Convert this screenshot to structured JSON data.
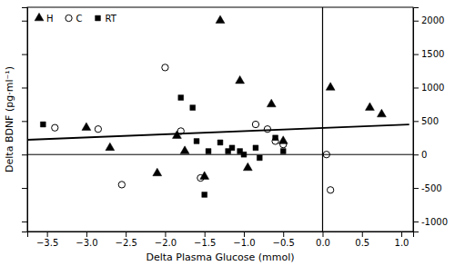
{
  "chart_data": {
    "type": "scatter",
    "xlabel": "Delta Plasma Glucose (mmol)",
    "ylabel": "Delta BDNF (pg·ml⁻¹)",
    "xlim": [
      -3.75,
      1.15
    ],
    "ylim": [
      -1150,
      2200
    ],
    "xticks": [
      {
        "value": -3.5,
        "label": "−3.5"
      },
      {
        "value": -3.0,
        "label": "−3.0"
      },
      {
        "value": -2.5,
        "label": "−2.5"
      },
      {
        "value": -2.0,
        "label": "−2.0"
      },
      {
        "value": -1.5,
        "label": "−1.5"
      },
      {
        "value": -1.0,
        "label": "−1.0"
      },
      {
        "value": -0.5,
        "label": "−0.5"
      },
      {
        "value": 0.0,
        "label": "0.0"
      },
      {
        "value": 0.5,
        "label": "0.5"
      },
      {
        "value": 1.0,
        "label": "1.0"
      }
    ],
    "yticks": [
      -1000,
      -500,
      0,
      500,
      1000,
      1500,
      2000
    ],
    "legend": "upper left",
    "grid": false,
    "series": [
      {
        "name": "H",
        "type": "scatter",
        "marker": "triangle",
        "color": "#000000",
        "x": [
          -3.0,
          -2.7,
          -2.1,
          -1.85,
          -1.75,
          -1.5,
          -1.3,
          -1.05,
          -0.95,
          -0.65,
          -0.5,
          0.1,
          0.6,
          0.75
        ],
        "values": [
          400,
          100,
          -280,
          280,
          50,
          -330,
          2000,
          1100,
          -200,
          750,
          200,
          1000,
          700,
          600
        ]
      },
      {
        "name": "C",
        "type": "scatter",
        "marker": "circle-open",
        "color": "#000000",
        "x": [
          -3.4,
          -2.85,
          -2.55,
          -2.0,
          -1.8,
          -1.55,
          -0.85,
          -0.7,
          -0.6,
          -0.5,
          0.05,
          0.1
        ],
        "values": [
          400,
          380,
          -450,
          1300,
          350,
          -350,
          450,
          380,
          200,
          150,
          0,
          -530
        ]
      },
      {
        "name": "RT",
        "type": "scatter",
        "marker": "square",
        "color": "#000000",
        "x": [
          -3.55,
          -1.8,
          -1.65,
          -1.6,
          -1.5,
          -1.45,
          -1.3,
          -1.2,
          -1.15,
          -1.05,
          -1.0,
          -0.85,
          -0.8,
          -0.6,
          -0.5
        ],
        "values": [
          450,
          850,
          700,
          200,
          -600,
          50,
          180,
          50,
          100,
          50,
          0,
          100,
          -50,
          250,
          50
        ]
      },
      {
        "type": "line",
        "line_style": "solid",
        "color": "#000000",
        "x": [
          -3.75,
          1.1
        ],
        "values": [
          220,
          450
        ]
      }
    ]
  }
}
